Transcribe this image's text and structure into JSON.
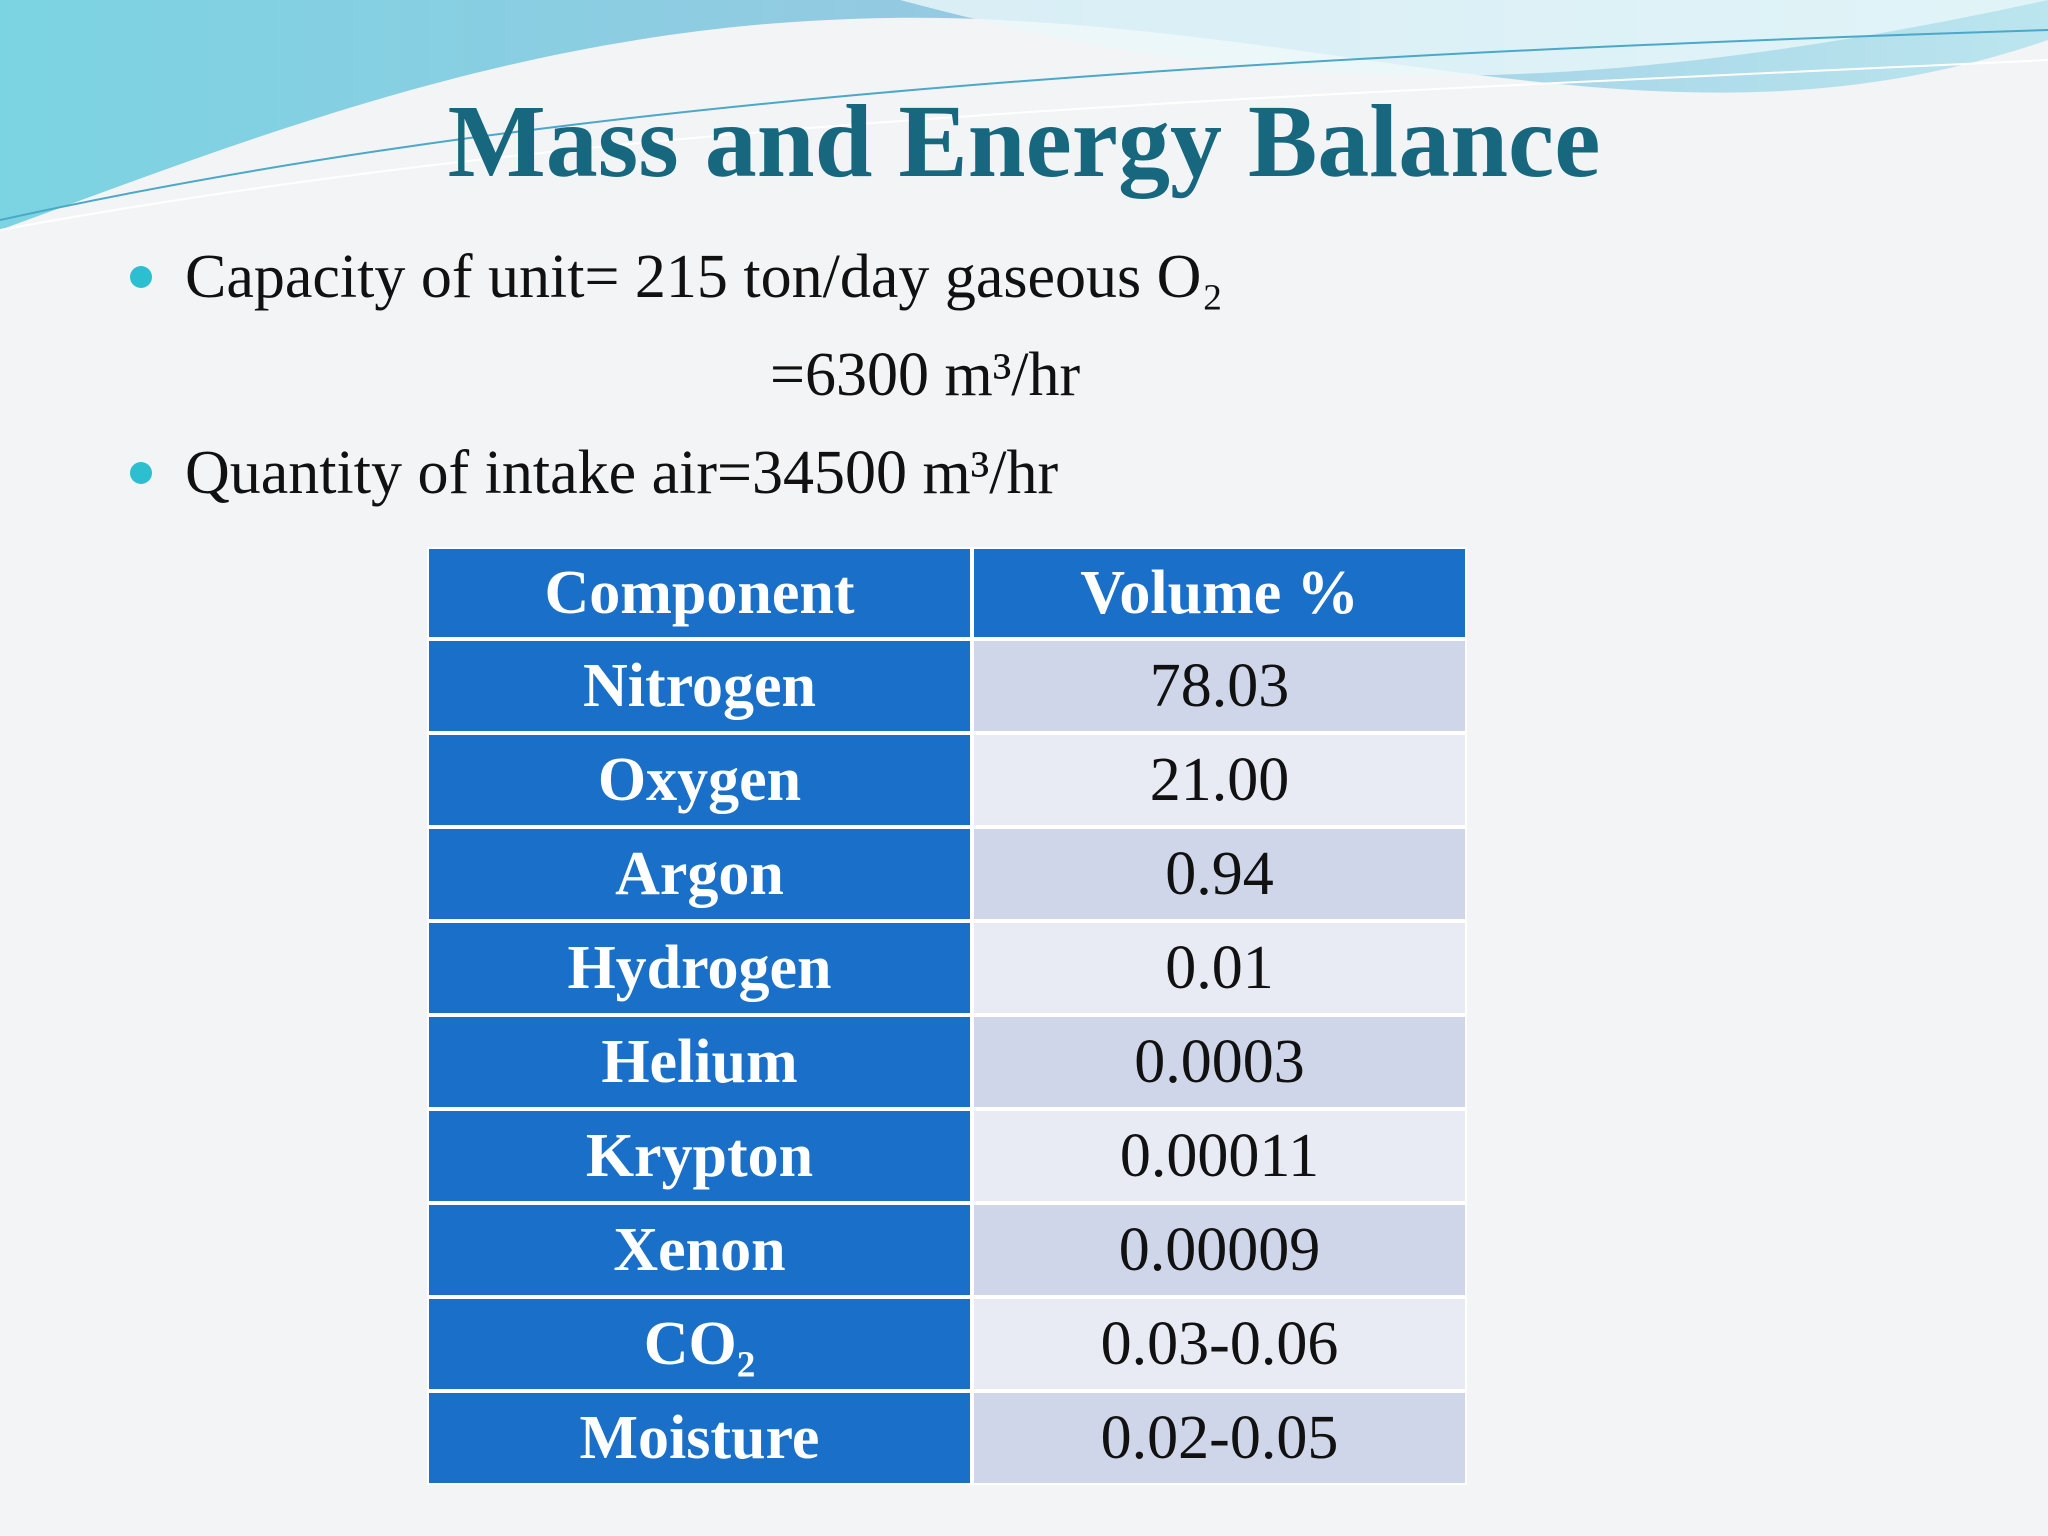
{
  "title": "Mass and Energy Balance",
  "bullets": [
    "Capacity of unit= 215 ton/day gaseous O₂",
    "=6300 m³/hr",
    "Quantity of intake air=34500 m³/hr"
  ],
  "table": {
    "header": [
      "Component",
      "Volume %"
    ],
    "rows": [
      [
        "Nitrogen",
        "78.03"
      ],
      [
        "Oxygen",
        "21.00"
      ],
      [
        "Argon",
        "0.94"
      ],
      [
        "Hydrogen",
        "0.01"
      ],
      [
        "Helium",
        "0.0003"
      ],
      [
        "Krypton",
        "0.00011"
      ],
      [
        "Xenon",
        "0.00009"
      ],
      [
        "CO₂",
        "0.03-0.06"
      ],
      [
        "Moisture",
        "0.02-0.05"
      ]
    ]
  }
}
